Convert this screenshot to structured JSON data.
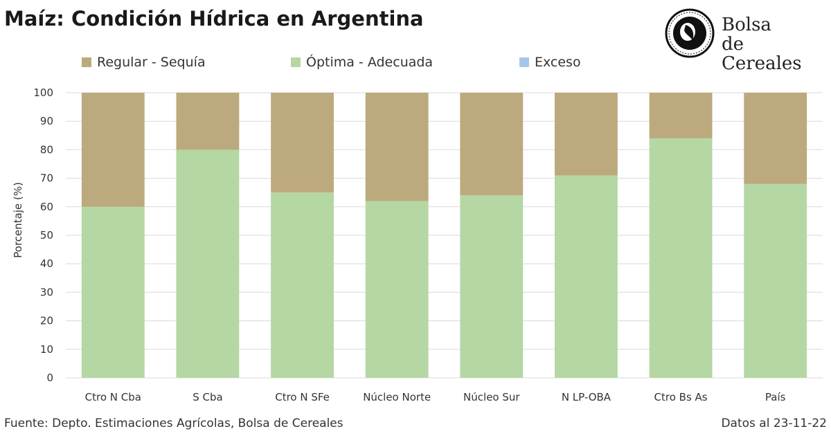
{
  "title": "Maíz: Condición Hídrica en Argentina",
  "logo": {
    "line1": "Bolsa",
    "line2": "de Cereales"
  },
  "footer": {
    "source": "Fuente: Depto. Estimaciones Agrícolas, Bolsa de Cereales",
    "date": "Datos al 23-11-22"
  },
  "colors": {
    "regular": "#BCAA7E",
    "optima": "#B5D7A4",
    "exceso": "#A6C8E8",
    "grid": "#D9D9D9"
  },
  "chart_data": {
    "type": "bar",
    "stacked": true,
    "title": "Maíz: Condición Hídrica en Argentina",
    "xlabel": "",
    "ylabel": "Porcentaje (%)",
    "ylim": [
      0,
      100
    ],
    "yticks": [
      "0",
      "10",
      "20",
      "30",
      "40",
      "50",
      "60",
      "70",
      "80",
      "90",
      "100"
    ],
    "grid": true,
    "legend_position": "top",
    "categories": [
      "Ctro N Cba",
      "S Cba",
      "Ctro N SFe",
      "Núcleo Norte",
      "Núcleo Sur",
      "N LP-OBA",
      "Ctro Bs As",
      "País"
    ],
    "series": [
      {
        "name": "Regular - Sequía",
        "key": "regular",
        "values": [
          40,
          20,
          35,
          38,
          36,
          29,
          16,
          32
        ]
      },
      {
        "name": "Óptima - Adecuada",
        "key": "optima",
        "values": [
          60,
          80,
          65,
          62,
          64,
          71,
          84,
          68
        ]
      },
      {
        "name": "Exceso",
        "key": "exceso",
        "values": [
          0,
          0,
          0,
          0,
          0,
          0,
          0,
          0
        ]
      }
    ]
  }
}
